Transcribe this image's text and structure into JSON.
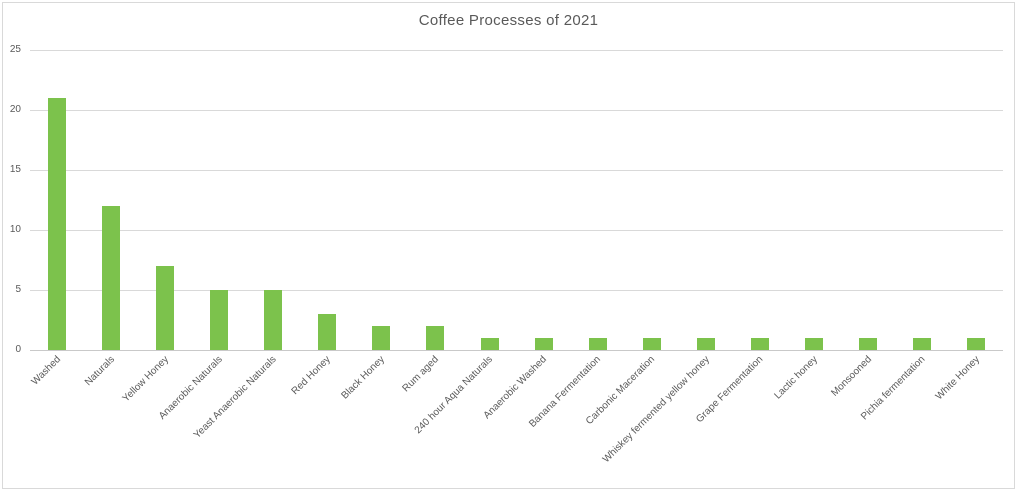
{
  "chart_data": {
    "type": "bar",
    "title": "Coffee Processes of 2021",
    "categories": [
      "Washed",
      "Naturals",
      "Yellow Honey",
      "Anaerobic Naturals",
      "Yeast Anaerobic Naturals",
      "Red Honey",
      "Black Honey",
      "Rum aged",
      "240 hour Aqua Naturals",
      "Anaerobic Washed",
      "Banana Fermentation",
      "Carbonic Maceration",
      "Whiskey fermented yellow honey",
      "Grape Fermentation",
      "Lactic honey",
      "Monsooned",
      "Pichia fermentation",
      "White Honey"
    ],
    "values": [
      21,
      12,
      7,
      5,
      5,
      3,
      2,
      2,
      1,
      1,
      1,
      1,
      1,
      1,
      1,
      1,
      1,
      1
    ],
    "xlabel": "",
    "ylabel": "",
    "ylim": [
      0,
      25
    ],
    "yticks": [
      0,
      5,
      10,
      15,
      20,
      25
    ],
    "grid": true,
    "legend_position": "none",
    "colors": {
      "bar": "#7CC24C",
      "title_text": "#595959",
      "axis_text": "#595959",
      "gridline": "#D9D9D9",
      "axis_line": "#C9C9C9",
      "chart_border": "#D9D9D9",
      "background": "#FFFFFF"
    }
  }
}
